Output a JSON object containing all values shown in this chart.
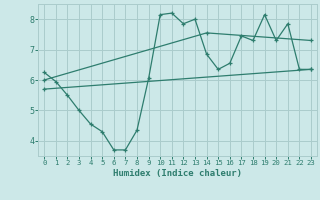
{
  "title": "",
  "xlabel": "Humidex (Indice chaleur)",
  "xlim": [
    -0.5,
    23.5
  ],
  "ylim": [
    3.5,
    8.5
  ],
  "yticks": [
    4,
    5,
    6,
    7,
    8
  ],
  "xticks": [
    0,
    1,
    2,
    3,
    4,
    5,
    6,
    7,
    8,
    9,
    10,
    11,
    12,
    13,
    14,
    15,
    16,
    17,
    18,
    19,
    20,
    21,
    22,
    23
  ],
  "background_color": "#cce8e8",
  "grid_color": "#aacccc",
  "line_color": "#2e7d6e",
  "line1_x": [
    0,
    1,
    2,
    3,
    4,
    5,
    6,
    7,
    8,
    9,
    10,
    11,
    12,
    13,
    14,
    15,
    16,
    17,
    18,
    19,
    20,
    21,
    22,
    23
  ],
  "line1_y": [
    6.25,
    5.95,
    5.5,
    5.0,
    4.55,
    4.3,
    3.7,
    3.7,
    4.35,
    6.05,
    8.15,
    8.2,
    7.85,
    8.0,
    6.85,
    6.35,
    6.55,
    7.45,
    7.3,
    8.15,
    7.3,
    7.85,
    6.35,
    6.35
  ],
  "line2_x": [
    0,
    14,
    23
  ],
  "line2_y": [
    6.0,
    7.55,
    7.3
  ],
  "line3_x": [
    0,
    23
  ],
  "line3_y": [
    5.7,
    6.35
  ]
}
